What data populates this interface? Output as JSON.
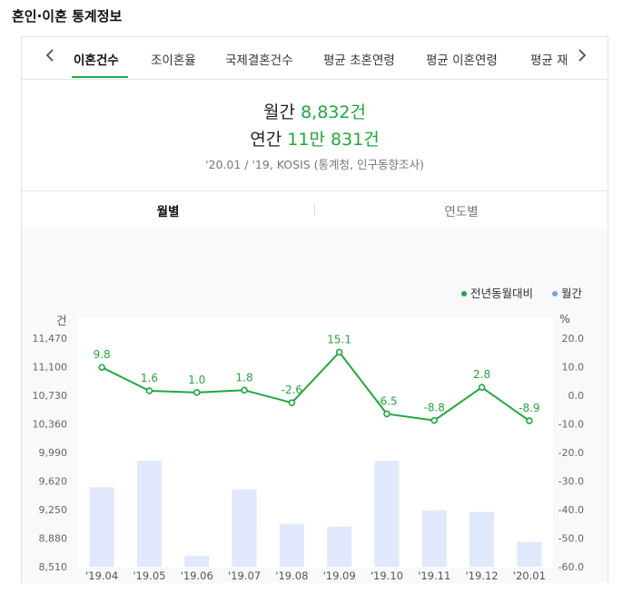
{
  "page_title": "혼인·이혼 통계정보",
  "tabs": [
    {
      "label": "이혼건수",
      "active": true
    },
    {
      "label": "조이혼율",
      "active": false
    },
    {
      "label": "국제결혼건수",
      "active": false
    },
    {
      "label": "평균 초혼연령",
      "active": false
    },
    {
      "label": "평균 이혼연령",
      "active": false
    },
    {
      "label": "평균 재",
      "active": false
    }
  ],
  "nav": {
    "prev_icon": "chevron-left-icon",
    "next_icon": "chevron-right-icon"
  },
  "summary": {
    "monthly_label": "월간",
    "monthly_value": "8,832건",
    "annual_label": "연간",
    "annual_value": "11만 831건",
    "source": "'20.01 / '19, KOSIS (통계청, 인구동향조사)"
  },
  "subtabs": [
    {
      "label": "월별",
      "active": true
    },
    {
      "label": "연도별",
      "active": false
    }
  ],
  "colors": {
    "accent": "#1fa93c",
    "bar": "#dfe9fb",
    "legend_blue": "#6fa3e8"
  },
  "chart_data": {
    "type": "bar",
    "legend": [
      {
        "label": "전년동월대비",
        "color": "#1fa93c"
      },
      {
        "label": "월간",
        "color": "#6fa3e8"
      }
    ],
    "legend_position": "top-right",
    "ylabel_left": "건",
    "ylabel_right": "%",
    "categories": [
      "'19.04",
      "'19.05",
      "'19.06",
      "'19.07",
      "'19.08",
      "'19.09",
      "'19.10",
      "'19.11",
      "'19.12",
      "'20.01"
    ],
    "left_ticks": [
      "8,510",
      "8,880",
      "9,250",
      "9,620",
      "9,990",
      "10,360",
      "10,730",
      "11,100",
      "11,470"
    ],
    "right_ticks": [
      "-60.0",
      "-50.0",
      "-40.0",
      "-30.0",
      "-20.0",
      "-10.0",
      "0.0",
      "10.0",
      "20.0"
    ],
    "left_ylim": [
      8510,
      11470
    ],
    "right_ylim": [
      -60,
      20
    ],
    "series": [
      {
        "name": "월간",
        "type": "bar",
        "values": [
          9540,
          9880,
          8650,
          9510,
          9060,
          9030,
          9880,
          9240,
          9220,
          8832
        ]
      },
      {
        "name": "전년동월대비",
        "type": "line",
        "values": [
          9.8,
          1.6,
          1.0,
          1.8,
          -2.6,
          15.1,
          -6.5,
          -8.8,
          2.8,
          -8.9
        ]
      }
    ],
    "data_labels": [
      "9.8",
      "1.6",
      "1.0",
      "1.8",
      "-2.6",
      "15.1",
      "-6.5",
      "-8.8",
      "2.8",
      "-8.9"
    ]
  }
}
